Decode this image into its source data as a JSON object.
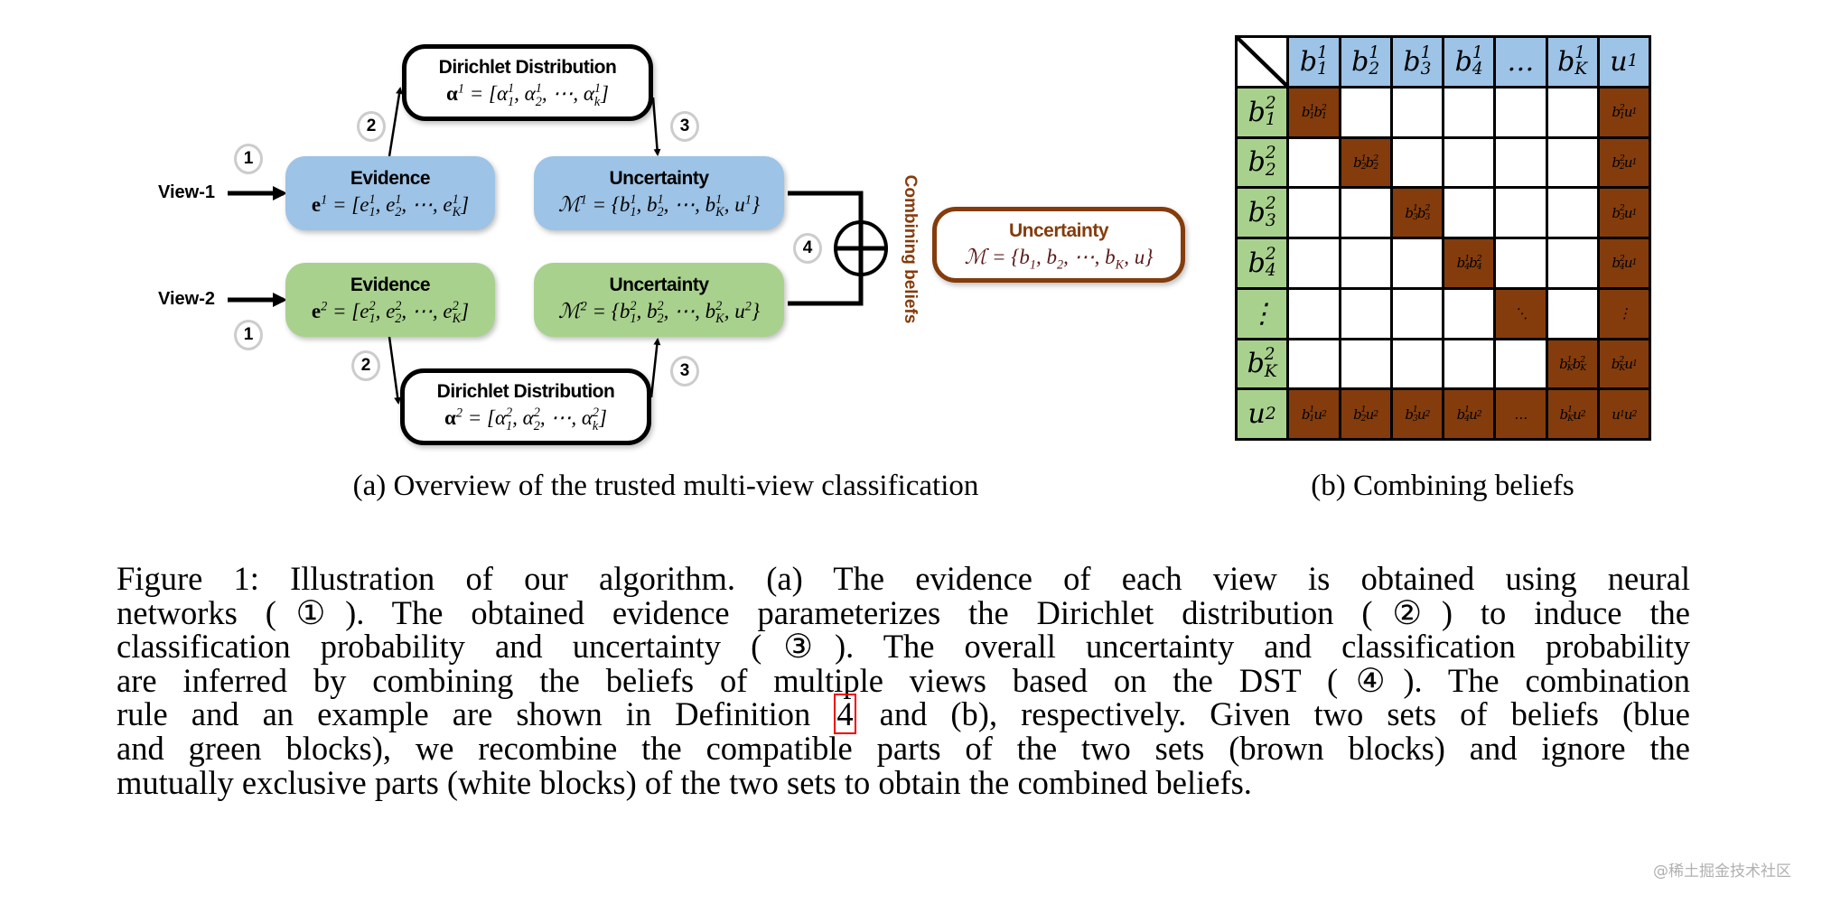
{
  "colors": {
    "blue": "#9dc3e6",
    "green": "#a9d18e",
    "brown": "#843c0c"
  },
  "diagram": {
    "view1_label": "View-1",
    "view2_label": "View-2",
    "evidence_title": "Evidence",
    "evidence1_formula": "**e**^{1} = [e_{1}^{1}, e_{2}^{1}, ⋯, e_{K}^{1}]",
    "evidence2_formula": "**e**^{2} = [e_{1}^{2}, e_{2}^{2}, ⋯, e_{K}^{2}]",
    "dirichlet_title": "Dirichlet Distribution",
    "dirichlet1_formula": "**α**^{1} = [α_{1}^{1}, α_{2}^{1}, ⋯, α_{k}^{1}]",
    "dirichlet2_formula": "**α**^{2} = [α_{1}^{2}, α_{2}^{2}, ⋯, α_{k}^{2}]",
    "uncertainty_title": "Uncertainty",
    "uncertainty1_formula": "ℳ^{1} = {b_{1}^{1}, b_{2}^{1}, ⋯, b_{K}^{1}, u^{1}}",
    "uncertainty2_formula": "ℳ^{2} = {b_{1}^{2}, b_{2}^{2}, ⋯, b_{K}^{2}, u^{2}}",
    "combined_title": "Uncertainty",
    "combined_formula": "ℳ = {b_{1}, b_{2}, ⋯, b_{K}, u}",
    "combining_label": "Combining beliefs",
    "step_numbers": [
      "1",
      "2",
      "3",
      "4"
    ],
    "combine_symbol": "oplus"
  },
  "matrix": {
    "col_headers": [
      "b_{1}^{1}",
      "b_{2}^{1}",
      "b_{3}^{1}",
      "b_{4}^{1}",
      "…",
      "b_{K}^{1}",
      "u^{1}"
    ],
    "row_headers": [
      "b_{1}^{2}",
      "b_{2}^{2}",
      "b_{3}^{2}",
      "b_{4}^{2}",
      "⋮",
      "b_{K}^{2}",
      "u^{2}"
    ],
    "rows": [
      [
        "b_{1}^{1}b_{1}^{2}",
        "",
        "",
        "",
        "",
        "",
        "b_{1}^{2}u^{1}"
      ],
      [
        "",
        "b_{2}^{1}b_{2}^{2}",
        "",
        "",
        "",
        "",
        "b_{2}^{2}u^{1}"
      ],
      [
        "",
        "",
        "b_{3}^{1}b_{3}^{2}",
        "",
        "",
        "",
        "b_{3}^{2}u^{1}"
      ],
      [
        "",
        "",
        "",
        "b_{4}^{1}b_{4}^{2}",
        "",
        "",
        "b_{4}^{2}u^{1}"
      ],
      [
        "",
        "",
        "",
        "",
        "⋱",
        "",
        "⋮"
      ],
      [
        "",
        "",
        "",
        "",
        "",
        "b_{K}^{1}b_{K}^{2}",
        "b_{K}^{2}u^{1}"
      ],
      [
        "b_{1}^{1}u^{2}",
        "b_{2}^{1}u^{2}",
        "b_{3}^{1}u^{2}",
        "b_{4}^{1}u^{2}",
        "…",
        "b_{K}^{1}u^{2}",
        "u^{1}u^{2}"
      ]
    ],
    "brown_cells": [
      [
        0,
        0
      ],
      [
        0,
        6
      ],
      [
        1,
        1
      ],
      [
        1,
        6
      ],
      [
        2,
        2
      ],
      [
        2,
        6
      ],
      [
        3,
        3
      ],
      [
        3,
        6
      ],
      [
        4,
        4
      ],
      [
        4,
        6
      ],
      [
        5,
        5
      ],
      [
        5,
        6
      ],
      [
        6,
        0
      ],
      [
        6,
        1
      ],
      [
        6,
        2
      ],
      [
        6,
        3
      ],
      [
        6,
        4
      ],
      [
        6,
        5
      ],
      [
        6,
        6
      ]
    ]
  },
  "captions": {
    "a": "(a) Overview of the trusted multi-view classification",
    "b": "(b) Combining beliefs"
  },
  "figure_caption": {
    "lines": [
      "Figure 1: Illustration of our algorithm. (a) The evidence of each view is obtained using neural",
      "networks (①). The obtained evidence parameterizes the Dirichlet distribution (②) to induce the",
      "classification probability and uncertainty (③). The overall uncertainty and classification probability",
      "are inferred by combining the beliefs of multiple views based on the DST (④). The combination",
      "",
      "and green blocks), we recombine the compatible parts of the two sets (brown blocks) and ignore the",
      "mutually exclusive parts (white blocks) of the two sets to obtain the combined beliefs."
    ],
    "line5_before": "rule and an example are shown in Definition ",
    "line5_link": "4",
    "line5_after": " and (b), respectively. Given two sets of beliefs (blue"
  },
  "watermark": "@稀土掘金技术社区"
}
